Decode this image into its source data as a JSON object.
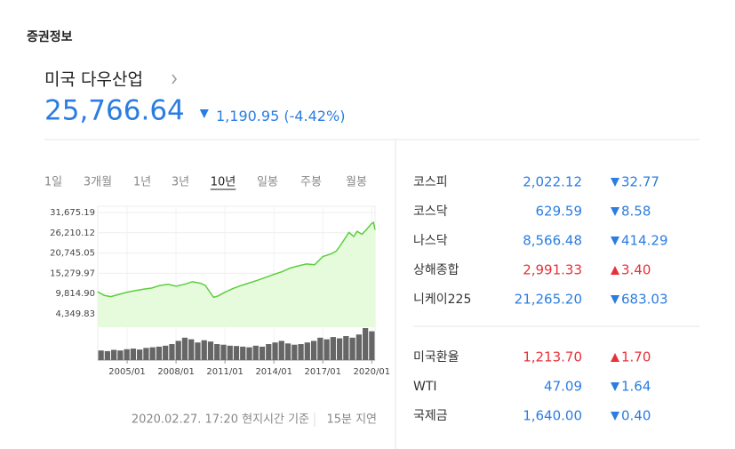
{
  "header": {
    "section_title": "증권정보",
    "index_name": "미국 다우산업",
    "price": "25,766.64",
    "direction": "down",
    "change": "1,190.95",
    "change_pct": "(-4.42%)"
  },
  "periods": {
    "items": [
      "1일",
      "3개월",
      "1년",
      "3년",
      "10년",
      "일봉",
      "주봉",
      "월봉"
    ],
    "selected": 4
  },
  "chart_data": {
    "type": "line",
    "x": [
      2003.2,
      2003.6,
      2004.0,
      2004.5,
      2005.0,
      2005.5,
      2006.0,
      2006.5,
      2007.0,
      2007.5,
      2008.0,
      2008.5,
      2009.0,
      2009.5,
      2009.8,
      2010.0,
      2010.3,
      2010.6,
      2011.0,
      2011.5,
      2012.0,
      2012.5,
      2013.0,
      2013.5,
      2014.0,
      2014.5,
      2015.0,
      2015.5,
      2016.0,
      2016.5,
      2017.0,
      2017.5,
      2017.8,
      2018.0,
      2018.3,
      2018.6,
      2018.9,
      2019.1,
      2019.4,
      2019.7,
      2019.95,
      2020.1,
      2020.2
    ],
    "series": [
      {
        "color": "#5ccf3e",
        "values": [
          10300,
          9300,
          9000,
          9600,
          10200,
          10600,
          11000,
          11300,
          12000,
          12300,
          11800,
          12300,
          13000,
          12600,
          12000,
          10700,
          8800,
          9200,
          10200,
          11200,
          12000,
          12700,
          13400,
          14200,
          15000,
          15700,
          16700,
          17300,
          17800,
          17600,
          19800,
          20500,
          21200,
          22300,
          24300,
          26300,
          25200,
          26600,
          25800,
          27200,
          28500,
          29000,
          27000
        ]
      }
    ],
    "xlim": [
      2003.2,
      2020.2
    ],
    "ylim": [
      750,
      33350
    ],
    "xticks": [
      {
        "value": 2005,
        "label": "2005/01"
      },
      {
        "value": 2008,
        "label": "2008/01"
      },
      {
        "value": 2011,
        "label": "2011/01"
      },
      {
        "value": 2014,
        "label": "2014/01"
      },
      {
        "value": 2017,
        "label": "2017/01"
      },
      {
        "value": 2020,
        "label": "2020/01"
      }
    ],
    "yticks": [
      {
        "value": 31675.19,
        "label": "31,675.19"
      },
      {
        "value": 26210.12,
        "label": "26,210.12"
      },
      {
        "value": 20745.05,
        "label": "20,745.05"
      },
      {
        "value": 15279.97,
        "label": "15,279.97"
      },
      {
        "value": 9814.9,
        "label": "9,814.90"
      },
      {
        "value": 4349.83,
        "label": "4,349.83"
      }
    ],
    "grid": true,
    "volume": {
      "color": "#666666",
      "ylim": [
        0,
        100
      ],
      "values": [
        30,
        28,
        32,
        30,
        34,
        36,
        33,
        38,
        40,
        42,
        45,
        50,
        60,
        70,
        65,
        55,
        62,
        58,
        50,
        48,
        45,
        44,
        42,
        40,
        45,
        42,
        50,
        55,
        60,
        52,
        48,
        50,
        55,
        60,
        70,
        65,
        72,
        68,
        75,
        70,
        80,
        100,
        90
      ]
    }
  },
  "quotes": {
    "rows": [
      {
        "name": "코스피",
        "price": "2,022.12",
        "change": "32.77",
        "direction": "down"
      },
      {
        "name": "코스닥",
        "price": "629.59",
        "change": "8.58",
        "direction": "down"
      },
      {
        "name": "나스닥",
        "price": "8,566.48",
        "change": "414.29",
        "direction": "down"
      },
      {
        "name": "상해종합",
        "price": "2,991.33",
        "change": "3.40",
        "direction": "up"
      },
      {
        "name": "니케이225",
        "price": "21,265.20",
        "change": "683.03",
        "direction": "down"
      }
    ],
    "fx_rows": [
      {
        "name": "미국환율",
        "price": "1,213.70",
        "change": "1.70",
        "direction": "up"
      },
      {
        "name": "WTI",
        "price": "47.09",
        "change": "1.64",
        "direction": "down"
      },
      {
        "name": "국제금",
        "price": "1,640.00",
        "change": "0.40",
        "direction": "down"
      }
    ]
  },
  "footer": {
    "timestamp": "2020.02.27. 17:20 현지시간 기준",
    "delay": "15분 지연"
  }
}
